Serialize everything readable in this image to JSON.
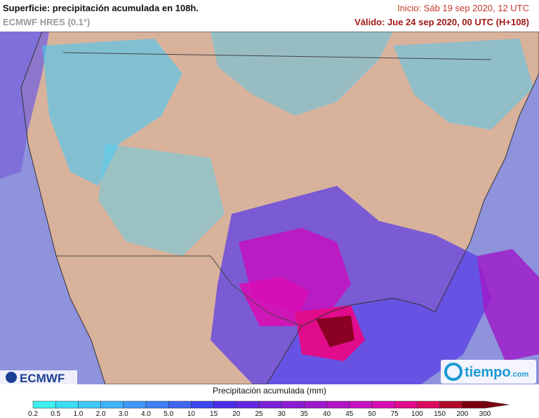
{
  "header": {
    "title": "Superficie: precipitación acumulada en 108h.",
    "model": "ECMWF HRES (0.1°)",
    "init": "Inicio: Sáb 19 sep 2020, 12 UTC",
    "valid": "Válido: Jue 24 sep 2020, 00 UTC (H+108)"
  },
  "legend": {
    "title": "Precipitación acumulada (mm)",
    "labels": [
      "0.2",
      "0.5",
      "1.0",
      "2.0",
      "3.0",
      "4.0",
      "5.0",
      "10",
      "15",
      "20",
      "25",
      "30",
      "35",
      "40",
      "45",
      "50",
      "75",
      "100",
      "150",
      "200",
      "300"
    ],
    "colors": [
      "#3ef0f0",
      "#3ddcf5",
      "#3ec8f8",
      "#3fb2fa",
      "#4098f8",
      "#4080f5",
      "#3f66f0",
      "#3c46ee",
      "#4a2ee8",
      "#6428e0",
      "#7a22d8",
      "#8c1cd2",
      "#9e18cc",
      "#b214c6",
      "#c412c0",
      "#d80eb4",
      "#e00c8c",
      "#dc0a5e",
      "#b00a2c",
      "#7a0010"
    ]
  },
  "logos": {
    "ecmwf": "ECMWF",
    "tiempo": "tiempo",
    "tiempo_domain": ".com"
  }
}
